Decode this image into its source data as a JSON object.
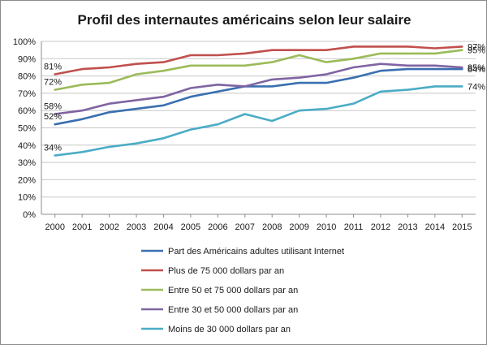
{
  "chart_data": {
    "type": "line",
    "title": "Profil des internautes américains selon leur salaire",
    "xlabel": "",
    "ylabel": "",
    "ylim": [
      0,
      100
    ],
    "y_ticks": [
      "0%",
      "10%",
      "20%",
      "30%",
      "40%",
      "50%",
      "60%",
      "70%",
      "80%",
      "90%",
      "100%"
    ],
    "x": [
      "2000",
      "2001",
      "2002",
      "2003",
      "2004",
      "2005",
      "2006",
      "2007",
      "2008",
      "2009",
      "2010",
      "2011",
      "2012",
      "2013",
      "2014",
      "2015"
    ],
    "grid": "horizontal",
    "legend_position": "bottom",
    "series": [
      {
        "name": "Part des Américains adultes utilisant Internet",
        "color": "#3a6fb0",
        "values": [
          52,
          55,
          59,
          61,
          63,
          68,
          71,
          74,
          74,
          76,
          76,
          79,
          83,
          84,
          84,
          84
        ],
        "start_label": "52%",
        "end_label": "84%"
      },
      {
        "name": "Plus de 75 000 dollars par an",
        "color": "#c0504d",
        "values": [
          81,
          84,
          85,
          87,
          88,
          92,
          92,
          93,
          95,
          95,
          95,
          97,
          97,
          97,
          96,
          97
        ],
        "start_label": "81%",
        "end_label": "97%"
      },
      {
        "name": "Entre 50 et 75 000 dollars par an",
        "color": "#9bbb59",
        "values": [
          72,
          75,
          76,
          81,
          83,
          86,
          86,
          86,
          88,
          92,
          88,
          90,
          93,
          93,
          93,
          95
        ],
        "start_label": "72%",
        "end_label": "95%"
      },
      {
        "name": "Entre 30 et 50 000 dollars par an",
        "color": "#8064a2",
        "values": [
          58,
          60,
          64,
          66,
          68,
          73,
          75,
          74,
          78,
          79,
          81,
          85,
          87,
          86,
          86,
          85
        ],
        "start_label": "58%",
        "end_label": "85%"
      },
      {
        "name": "Moins de 30 000 dollars par an",
        "color": "#4bacc6",
        "values": [
          34,
          36,
          39,
          41,
          44,
          49,
          52,
          58,
          54,
          60,
          61,
          64,
          71,
          72,
          74,
          74
        ],
        "start_label": "34%",
        "end_label": "74%"
      }
    ]
  }
}
